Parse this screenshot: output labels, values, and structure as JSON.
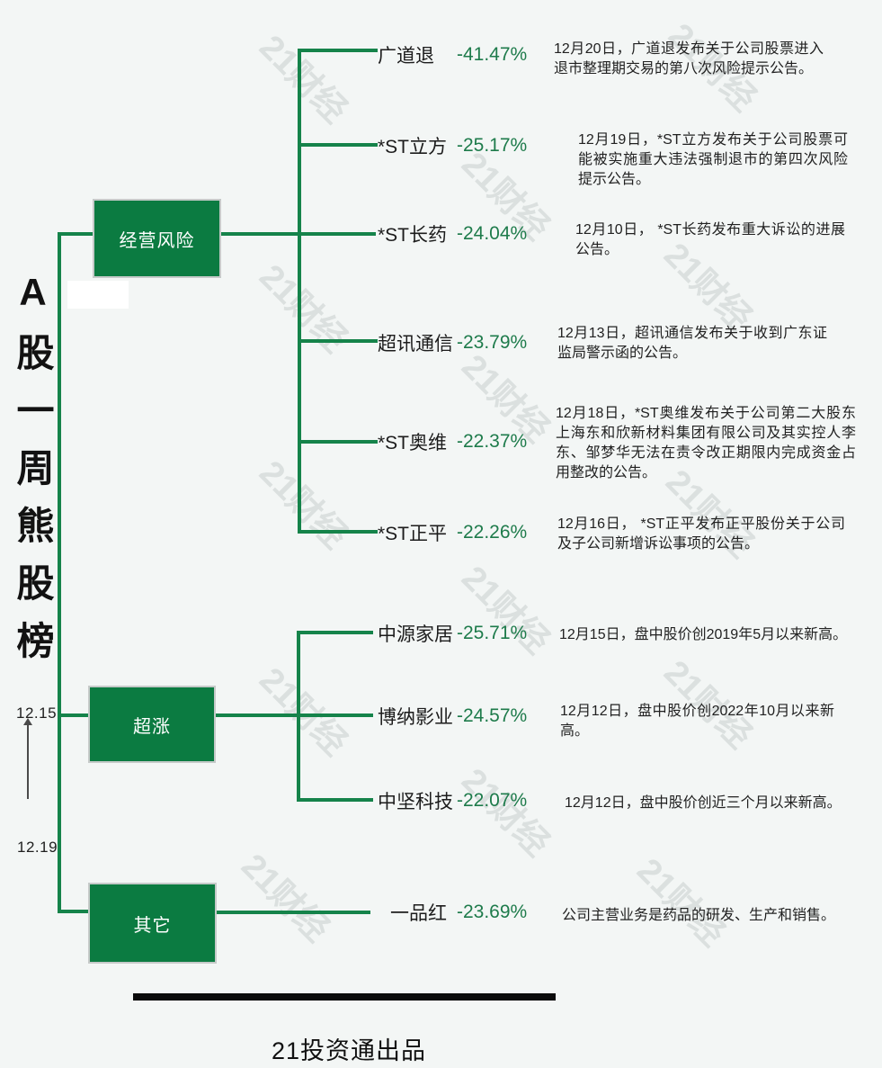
{
  "page": {
    "background_color": "#f3f6f5",
    "watermark_text": "21财经"
  },
  "title": {
    "text": "A股一周熊股榜"
  },
  "timeline": {
    "start_date": "12.15",
    "end_date": "12.19"
  },
  "colors": {
    "category_box_green": "#0b7b41",
    "connector_green": "#15834a",
    "percent_green": "#1e7b4b"
  },
  "groups": [
    {
      "label": "经营风险",
      "stocks": [
        {
          "name": "广道退",
          "pct": "-41.47%",
          "desc": "12月20日，广道退发布关于公司股票进入退市整理期交易的第八次风险提示公告。"
        },
        {
          "name": "*ST立方",
          "pct": "-25.17%",
          "desc": "12月19日，*ST立方发布关于公司股票可能被实施重大违法强制退市的第四次风险提示公告。"
        },
        {
          "name": "*ST长药",
          "pct": "-24.04%",
          "desc": "12月10日， *ST长药发布重大诉讼的进展公告。"
        },
        {
          "name": "超讯通信",
          "pct": "-23.79%",
          "desc": "12月13日，超讯通信发布关于收到广东证监局警示函的公告。"
        },
        {
          "name": "*ST奥维",
          "pct": "-22.37%",
          "desc": "12月18日，*ST奥维发布关于公司第二大股东上海东和欣新材料集团有限公司及其实控人李东、邹梦华无法在责令改正期限内完成资金占用整改的公告。"
        },
        {
          "name": "*ST正平",
          "pct": "-22.26%",
          "desc": "12月16日， *ST正平发布正平股份关于公司及子公司新增诉讼事项的公告。"
        }
      ]
    },
    {
      "label": "超涨",
      "stocks": [
        {
          "name": "中源家居",
          "pct": "-25.71%",
          "desc": "12月15日，盘中股价创2019年5月以来新高。"
        },
        {
          "name": "博纳影业",
          "pct": "-24.57%",
          "desc": "12月12日，盘中股价创2022年10月以来新高。"
        },
        {
          "name": "中坚科技",
          "pct": "-22.07%",
          "desc": "12月12日，盘中股价创近三个月以来新高。"
        }
      ]
    },
    {
      "label": "其它",
      "stocks": [
        {
          "name": "一品红",
          "pct": "-23.69%",
          "desc": "公司主营业务是药品的研发、生产和销售。"
        }
      ]
    }
  ],
  "footer": {
    "brand": "21投资通出品"
  }
}
